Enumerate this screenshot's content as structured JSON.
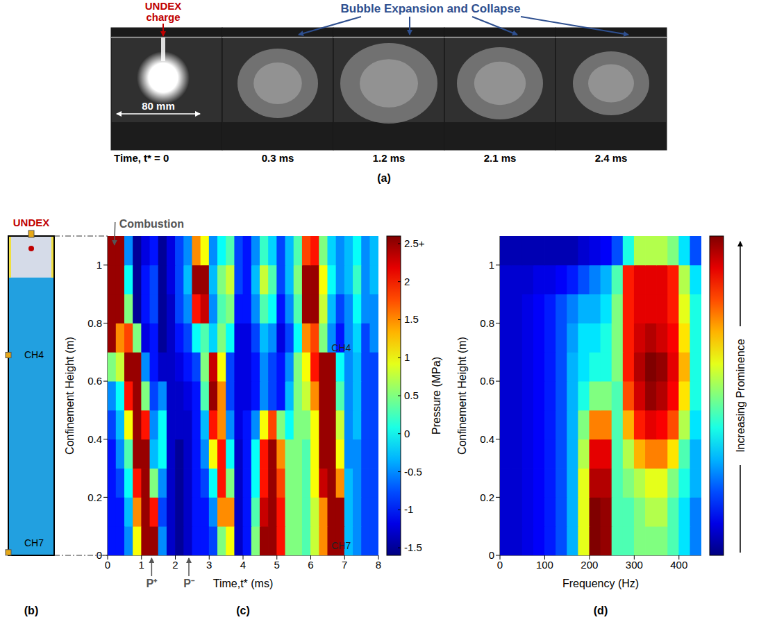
{
  "panel_a": {
    "label": "(a)",
    "charge_label": "UNDEX charge",
    "caption": "Bubble Expansion and Collapse",
    "scale_label": "80 mm",
    "times": [
      "Time, t* = 0",
      "0.3 ms",
      "1.2 ms",
      "2.1 ms",
      "2.4 ms"
    ]
  },
  "panel_b": {
    "label": "(b)",
    "charge_label": "UNDEX",
    "channels": [
      {
        "name": "CH4",
        "height": 0.69
      },
      {
        "name": "CH7",
        "height": 0.01
      }
    ]
  },
  "chart_data": [
    {
      "type": "heatmap",
      "panel": "(c)",
      "xlabel": "Time,t* (ms)",
      "ylabel": "Confinement Height (m)",
      "xlim": [
        0,
        8
      ],
      "xticks": [
        0,
        1,
        2,
        3,
        4,
        5,
        6,
        7,
        8
      ],
      "ylim": [
        0,
        1.1
      ],
      "yticks": [
        0,
        0.2,
        0.4,
        0.6,
        0.8,
        1
      ],
      "x": [
        0.125,
        0.375,
        0.625,
        0.875,
        1.125,
        1.375,
        1.625,
        1.875,
        2.125,
        2.375,
        2.625,
        2.875,
        3.125,
        3.375,
        3.625,
        3.875,
        4.125,
        4.375,
        4.625,
        4.875,
        5.125,
        5.375,
        5.625,
        5.875,
        6.125,
        6.375,
        6.625,
        6.875,
        7.125,
        7.375,
        7.625,
        7.875
      ],
      "y": [
        0.05,
        0.15,
        0.25,
        0.35,
        0.45,
        0.55,
        0.65,
        0.75,
        0.85,
        0.95,
        1.05
      ],
      "values": [
        [
          -1.0,
          -1.0,
          -0.5,
          1.0,
          2.5,
          2.5,
          -0.5,
          -1.3,
          -1.5,
          -1.3,
          -1.0,
          -1.0,
          -0.8,
          0.5,
          1.0,
          -1.3,
          -1.0,
          0.5,
          2.5,
          2.5,
          2.0,
          0.5,
          0.5,
          0.3,
          0.8,
          1.5,
          2.5,
          2.5,
          -0.3,
          -0.5,
          -0.8,
          -0.8
        ],
        [
          -1.0,
          -1.0,
          -0.3,
          1.5,
          2.5,
          2.0,
          -0.8,
          -1.3,
          -1.5,
          -1.3,
          -1.0,
          -1.0,
          -0.5,
          1.5,
          1.5,
          -1.3,
          -1.0,
          0.3,
          2.3,
          2.5,
          2.0,
          0.5,
          0.5,
          0.3,
          0.8,
          1.5,
          2.5,
          2.5,
          -0.3,
          -0.5,
          -0.8,
          -0.8
        ],
        [
          -1.0,
          -0.8,
          0.0,
          2.0,
          2.5,
          0.5,
          -0.5,
          -1.3,
          -1.5,
          -1.3,
          -1.0,
          -0.8,
          0.0,
          2.0,
          0.5,
          -1.3,
          -1.0,
          0.0,
          2.0,
          2.5,
          1.8,
          0.5,
          0.5,
          0.3,
          1.0,
          2.3,
          2.5,
          1.5,
          -0.3,
          -0.5,
          -0.8,
          -0.8
        ],
        [
          -1.0,
          -0.5,
          0.3,
          2.5,
          2.5,
          -0.3,
          0.0,
          -1.3,
          -1.5,
          -1.3,
          -1.0,
          -0.5,
          1.0,
          2.0,
          0.0,
          -1.3,
          -1.0,
          0.0,
          2.0,
          2.5,
          1.5,
          0.5,
          0.5,
          0.3,
          1.0,
          2.5,
          2.5,
          1.0,
          -0.5,
          -0.5,
          -0.8,
          -0.8
        ],
        [
          -0.8,
          -0.3,
          1.0,
          2.5,
          2.0,
          -0.5,
          0.0,
          -1.3,
          -1.3,
          -1.3,
          -1.0,
          -0.3,
          2.0,
          1.5,
          -0.5,
          -1.2,
          -1.0,
          -0.5,
          1.0,
          1.8,
          0.5,
          0.0,
          0.5,
          0.5,
          1.0,
          2.5,
          2.5,
          0.8,
          -0.5,
          -0.3,
          -0.8,
          -0.8
        ],
        [
          -0.5,
          0.0,
          2.0,
          2.5,
          0.5,
          -0.8,
          -0.5,
          -1.3,
          -1.3,
          -1.2,
          -1.0,
          0.3,
          2.5,
          1.5,
          -0.8,
          -1.2,
          -1.2,
          -1.0,
          -0.5,
          -0.8,
          -1.0,
          -0.3,
          0.5,
          0.8,
          1.5,
          2.5,
          2.5,
          0.3,
          -0.5,
          -0.3,
          -0.8,
          -0.8
        ],
        [
          0.5,
          0.8,
          2.5,
          2.5,
          -0.5,
          -1.0,
          -1.3,
          -1.3,
          -1.2,
          -1.0,
          -0.8,
          0.5,
          2.3,
          1.0,
          -0.8,
          -1.2,
          -1.2,
          -1.0,
          -0.5,
          -0.8,
          -1.0,
          -0.5,
          0.5,
          1.0,
          2.0,
          2.5,
          2.5,
          0.0,
          -0.5,
          -0.3,
          -0.8,
          -0.8
        ],
        [
          2.5,
          1.5,
          1.8,
          0.5,
          -1.2,
          -1.0,
          -1.5,
          -1.3,
          -1.0,
          -0.8,
          0.0,
          0.3,
          -0.2,
          0.5,
          0.0,
          -1.2,
          -1.2,
          -0.8,
          -0.3,
          -0.5,
          -1.2,
          -0.8,
          0.0,
          1.5,
          1.8,
          0.5,
          -0.5,
          -1.0,
          -0.5,
          -0.2,
          -0.8,
          -0.5
        ],
        [
          2.5,
          2.5,
          0.5,
          -1.5,
          -1.0,
          -0.8,
          -1.5,
          -1.3,
          -0.8,
          -0.5,
          2.0,
          2.3,
          -0.5,
          0.3,
          0.5,
          -1.0,
          -1.0,
          -0.5,
          0.3,
          0.0,
          -1.0,
          -0.5,
          0.3,
          2.5,
          2.5,
          0.8,
          -0.3,
          -0.8,
          -0.5,
          0.0,
          -0.5,
          -0.5
        ],
        [
          2.5,
          2.5,
          0.0,
          -1.5,
          -1.0,
          -0.8,
          -1.5,
          -1.2,
          -0.8,
          -0.3,
          2.5,
          2.5,
          -0.3,
          0.5,
          0.8,
          -0.8,
          -1.0,
          -0.3,
          0.8,
          0.3,
          -0.8,
          -0.3,
          0.5,
          2.5,
          2.5,
          1.0,
          0.0,
          -0.5,
          -0.3,
          0.2,
          -0.5,
          -0.3
        ],
        [
          2.5,
          2.5,
          -0.5,
          -1.5,
          -1.2,
          -1.0,
          -1.5,
          -1.2,
          -0.8,
          -0.5,
          1.5,
          1.0,
          -0.5,
          0.0,
          0.3,
          -0.8,
          -1.0,
          -0.5,
          0.2,
          -0.2,
          -0.8,
          -0.3,
          0.3,
          1.8,
          2.0,
          0.5,
          -0.2,
          -0.5,
          -0.3,
          0.0,
          -0.5,
          -0.3
        ]
      ],
      "colorbar": {
        "label": "Pressure (MPa)",
        "range": [
          -1.6,
          2.6
        ],
        "ticks": [
          -1.5,
          -1,
          -0.5,
          0,
          0.5,
          1,
          1.5,
          2,
          {
            "value": 2.5,
            "label": "2.5+"
          }
        ]
      },
      "annotations": [
        {
          "text": "Combustion",
          "x": 0.2,
          "y": 1.06
        },
        {
          "text": "P⁺",
          "x": 1.3,
          "y": 0
        },
        {
          "text": "P⁻",
          "x": 2.4,
          "y": 0
        },
        {
          "text": "CH4",
          "x": 6.9,
          "y": 0.69,
          "line_style": "dashed"
        },
        {
          "text": "CH7",
          "x": 6.9,
          "y": 0.01,
          "line_style": "dashed"
        }
      ]
    },
    {
      "type": "heatmap",
      "panel": "(d)",
      "xlabel": "Frequency (Hz)",
      "ylabel": "Confinement Height (m)",
      "xlim": [
        0,
        450
      ],
      "xticks": [
        0,
        100,
        200,
        300,
        400
      ],
      "ylim": [
        0,
        1.1
      ],
      "yticks": [
        0,
        0.2,
        0.4,
        0.6,
        0.8,
        1
      ],
      "x": [
        12.5,
        37.5,
        62.5,
        87.5,
        112.5,
        137.5,
        162.5,
        187.5,
        212.5,
        237.5,
        262.5,
        287.5,
        312.5,
        337.5,
        362.5,
        387.5,
        412.5,
        437.5
      ],
      "y": [
        0.05,
        0.15,
        0.25,
        0.35,
        0.45,
        0.55,
        0.65,
        0.75,
        0.85,
        0.95,
        1.05
      ],
      "values": [
        [
          0.08,
          0.08,
          0.1,
          0.12,
          0.15,
          0.2,
          0.3,
          0.6,
          1.0,
          0.98,
          0.45,
          0.45,
          0.5,
          0.5,
          0.5,
          0.45,
          0.35,
          0.25
        ],
        [
          0.08,
          0.08,
          0.1,
          0.12,
          0.15,
          0.2,
          0.3,
          0.6,
          1.0,
          0.98,
          0.45,
          0.45,
          0.5,
          0.55,
          0.55,
          0.45,
          0.35,
          0.25
        ],
        [
          0.08,
          0.08,
          0.1,
          0.12,
          0.15,
          0.2,
          0.3,
          0.6,
          0.95,
          0.95,
          0.45,
          0.5,
          0.55,
          0.6,
          0.6,
          0.5,
          0.4,
          0.3
        ],
        [
          0.08,
          0.08,
          0.1,
          0.12,
          0.15,
          0.2,
          0.3,
          0.55,
          0.9,
          0.9,
          0.45,
          0.55,
          0.7,
          0.75,
          0.75,
          0.65,
          0.45,
          0.3
        ],
        [
          0.08,
          0.08,
          0.1,
          0.12,
          0.15,
          0.2,
          0.3,
          0.5,
          0.75,
          0.75,
          0.45,
          0.7,
          0.85,
          0.9,
          0.88,
          0.8,
          0.55,
          0.35
        ],
        [
          0.08,
          0.08,
          0.1,
          0.12,
          0.15,
          0.2,
          0.3,
          0.4,
          0.5,
          0.5,
          0.45,
          0.8,
          0.92,
          0.98,
          0.95,
          0.88,
          0.65,
          0.4
        ],
        [
          0.08,
          0.08,
          0.1,
          0.12,
          0.15,
          0.2,
          0.3,
          0.35,
          0.4,
          0.4,
          0.5,
          0.85,
          0.95,
          1.0,
          0.98,
          0.9,
          0.7,
          0.4
        ],
        [
          0.08,
          0.08,
          0.1,
          0.12,
          0.15,
          0.2,
          0.28,
          0.35,
          0.35,
          0.4,
          0.5,
          0.85,
          0.92,
          0.95,
          0.92,
          0.88,
          0.65,
          0.4
        ],
        [
          0.08,
          0.08,
          0.1,
          0.12,
          0.15,
          0.2,
          0.25,
          0.3,
          0.3,
          0.35,
          0.5,
          0.85,
          0.9,
          0.9,
          0.9,
          0.85,
          0.6,
          0.4
        ],
        [
          0.08,
          0.08,
          0.08,
          0.1,
          0.1,
          0.12,
          0.15,
          0.2,
          0.25,
          0.3,
          0.45,
          0.85,
          0.9,
          0.9,
          0.9,
          0.85,
          0.55,
          0.35
        ],
        [
          0.05,
          0.05,
          0.05,
          0.05,
          0.05,
          0.05,
          0.05,
          0.08,
          0.1,
          0.12,
          0.2,
          0.4,
          0.55,
          0.55,
          0.55,
          0.5,
          0.35,
          0.2
        ]
      ],
      "colorbar": {
        "label": "Increasing Prominence",
        "range": [
          0,
          1
        ]
      }
    }
  ]
}
